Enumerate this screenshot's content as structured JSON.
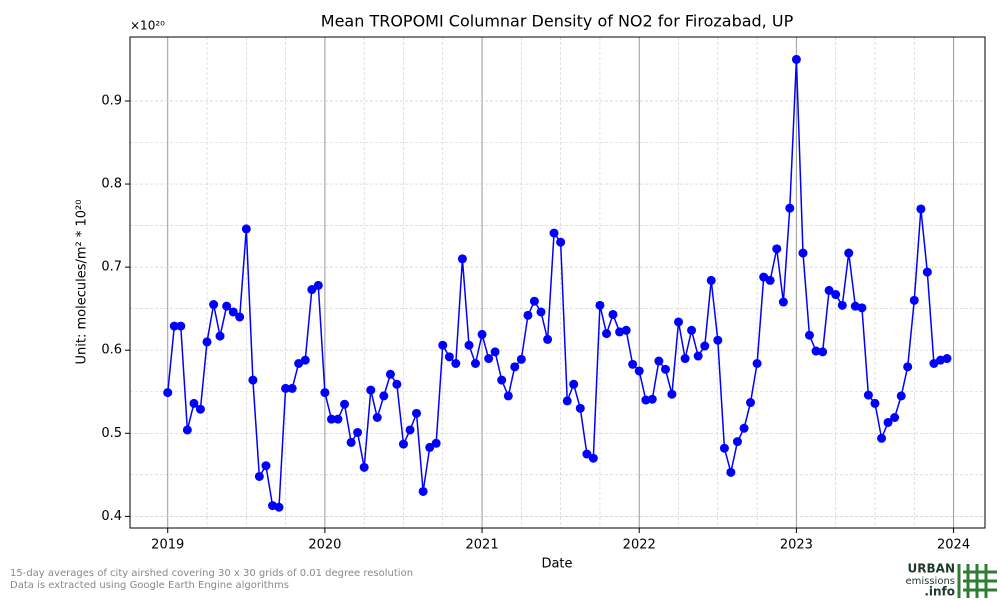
{
  "chart_data": {
    "type": "line",
    "title": "Mean TROPOMI Columnar Density of NO2 for Firozabad, UP",
    "xlabel": "Date",
    "ylabel": "Unit: molecules/m² * 10²⁰",
    "y_scale_label": "×10²⁰",
    "xlim": [
      2018.76,
      2024.2
    ],
    "xticks": [
      2019,
      2020,
      2021,
      2022,
      2023,
      2024
    ],
    "ylim": [
      0.386,
      0.977
    ],
    "yticks": [
      0.4,
      0.5,
      0.6,
      0.7,
      0.8,
      0.9
    ],
    "grid": true,
    "series": [
      {
        "color": "#0000ff",
        "x": [
          2019.0,
          2019.042,
          2019.083,
          2019.125,
          2019.167,
          2019.208,
          2019.25,
          2019.292,
          2019.333,
          2019.375,
          2019.417,
          2019.458,
          2019.5,
          2019.542,
          2019.583,
          2019.625,
          2019.667,
          2019.708,
          2019.75,
          2019.792,
          2019.833,
          2019.875,
          2019.917,
          2019.958,
          2020.0,
          2020.042,
          2020.083,
          2020.125,
          2020.167,
          2020.208,
          2020.25,
          2020.292,
          2020.333,
          2020.375,
          2020.417,
          2020.458,
          2020.5,
          2020.542,
          2020.583,
          2020.625,
          2020.667,
          2020.708,
          2020.75,
          2020.792,
          2020.833,
          2020.875,
          2020.917,
          2020.958,
          2021.0,
          2021.042,
          2021.083,
          2021.125,
          2021.167,
          2021.208,
          2021.25,
          2021.292,
          2021.333,
          2021.375,
          2021.417,
          2021.458,
          2021.5,
          2021.542,
          2021.583,
          2021.625,
          2021.667,
          2021.708,
          2021.75,
          2021.792,
          2021.833,
          2021.875,
          2021.917,
          2021.958,
          2022.0,
          2022.042,
          2022.083,
          2022.125,
          2022.167,
          2022.208,
          2022.25,
          2022.292,
          2022.333,
          2022.375,
          2022.417,
          2022.458,
          2022.5,
          2022.542,
          2022.583,
          2022.625,
          2022.667,
          2022.708,
          2022.75,
          2022.792,
          2022.833,
          2022.875,
          2022.917,
          2022.958,
          2023.0,
          2023.042,
          2023.083,
          2023.125,
          2023.167,
          2023.208,
          2023.25,
          2023.292,
          2023.333,
          2023.375,
          2023.417,
          2023.458,
          2023.5,
          2023.542,
          2023.583,
          2023.625,
          2023.667,
          2023.708,
          2023.75,
          2023.792,
          2023.833,
          2023.875,
          2023.917,
          2023.958
        ],
        "values": [
          0.549,
          0.629,
          0.629,
          0.504,
          0.536,
          0.529,
          0.61,
          0.655,
          0.617,
          0.653,
          0.646,
          0.64,
          0.746,
          0.564,
          0.448,
          0.461,
          0.413,
          0.411,
          0.554,
          0.554,
          0.584,
          0.588,
          0.673,
          0.678,
          0.549,
          0.517,
          0.517,
          0.535,
          0.489,
          0.501,
          0.459,
          0.552,
          0.519,
          0.545,
          0.571,
          0.559,
          0.487,
          0.504,
          0.524,
          0.43,
          0.483,
          0.488,
          0.606,
          0.592,
          0.584,
          0.71,
          0.606,
          0.584,
          0.619,
          0.59,
          0.598,
          0.564,
          0.545,
          0.58,
          0.589,
          0.642,
          0.659,
          0.646,
          0.613,
          0.741,
          0.73,
          0.539,
          0.559,
          0.53,
          0.475,
          0.47,
          0.654,
          0.62,
          0.643,
          0.622,
          0.624,
          0.583,
          0.575,
          0.54,
          0.541,
          0.587,
          0.577,
          0.547,
          0.634,
          0.59,
          0.624,
          0.593,
          0.605,
          0.684,
          0.612,
          0.482,
          0.453,
          0.49,
          0.506,
          0.537,
          0.584,
          0.688,
          0.684,
          0.722,
          0.658,
          0.771,
          0.95,
          0.717,
          0.618,
          0.599,
          0.598,
          0.672,
          0.667,
          0.654,
          0.717,
          0.653,
          0.651,
          0.546,
          0.536,
          0.494,
          0.513,
          0.519,
          0.545,
          0.58,
          0.66,
          0.77,
          0.694,
          0.584,
          0.588,
          0.59
        ]
      }
    ]
  },
  "footer": {
    "notes": [
      "15-day averages of city airshed covering 30 x 30 grids of 0.01 degree resolution",
      "Data is extracted using Google Earth Engine algorithms"
    ],
    "logo": {
      "line1": "URBAN",
      "line2": "emissions",
      "line3": ".info"
    }
  }
}
